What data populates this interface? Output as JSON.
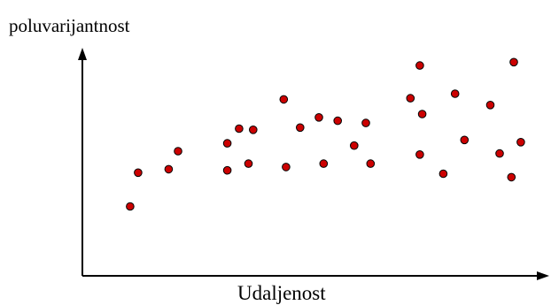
{
  "chart_data": {
    "type": "scatter",
    "title": "",
    "xlabel": "Udaljenost",
    "ylabel": "poluvarijantnost",
    "grid": false,
    "legend": "none",
    "ticks": false,
    "xlim": [
      0,
      100
    ],
    "ylim": [
      0,
      100
    ],
    "point_color": "#cc0000",
    "point_edge_color": "#000000",
    "axis_color": "#000000",
    "series": [
      {
        "points": [
          {
            "x": 9.8,
            "y": 30.0
          },
          {
            "x": 11.5,
            "y": 45.0
          },
          {
            "x": 18.0,
            "y": 46.5
          },
          {
            "x": 20.0,
            "y": 54.5
          },
          {
            "x": 30.5,
            "y": 46.0
          },
          {
            "x": 30.5,
            "y": 58.0
          },
          {
            "x": 33.0,
            "y": 64.5
          },
          {
            "x": 35.0,
            "y": 49.0
          },
          {
            "x": 36.0,
            "y": 64.0
          },
          {
            "x": 42.5,
            "y": 77.5
          },
          {
            "x": 43.0,
            "y": 47.5
          },
          {
            "x": 46.0,
            "y": 65.0
          },
          {
            "x": 50.0,
            "y": 69.5
          },
          {
            "x": 51.0,
            "y": 49.0
          },
          {
            "x": 54.0,
            "y": 68.0
          },
          {
            "x": 57.5,
            "y": 57.0
          },
          {
            "x": 60.0,
            "y": 67.0
          },
          {
            "x": 61.0,
            "y": 49.0
          },
          {
            "x": 69.5,
            "y": 78.0
          },
          {
            "x": 71.5,
            "y": 92.5
          },
          {
            "x": 71.5,
            "y": 53.0
          },
          {
            "x": 72.0,
            "y": 71.0
          },
          {
            "x": 76.5,
            "y": 44.5
          },
          {
            "x": 79.0,
            "y": 80.0
          },
          {
            "x": 81.0,
            "y": 59.5
          },
          {
            "x": 86.5,
            "y": 75.0
          },
          {
            "x": 88.5,
            "y": 53.5
          },
          {
            "x": 91.0,
            "y": 43.0
          },
          {
            "x": 91.5,
            "y": 94.0
          },
          {
            "x": 93.0,
            "y": 58.5
          }
        ]
      }
    ]
  }
}
